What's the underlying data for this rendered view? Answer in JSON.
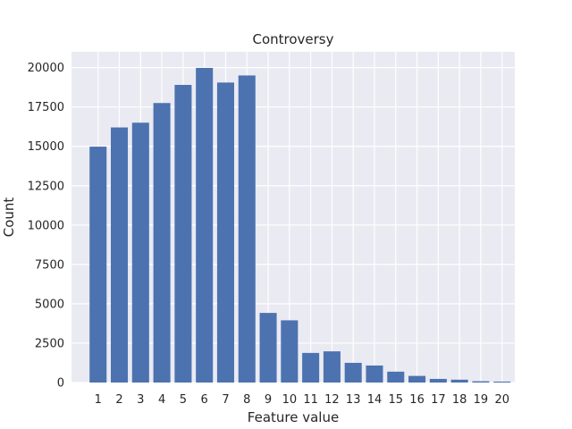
{
  "chart_data": {
    "type": "bar",
    "title": "Controversy",
    "xlabel": "Feature value",
    "ylabel": "Count",
    "categories": [
      "1",
      "2",
      "3",
      "4",
      "5",
      "6",
      "7",
      "8",
      "9",
      "10",
      "11",
      "12",
      "13",
      "14",
      "15",
      "16",
      "17",
      "18",
      "19",
      "20"
    ],
    "values": [
      14980,
      16200,
      16500,
      17750,
      18900,
      19980,
      19050,
      19500,
      4420,
      3950,
      1880,
      1980,
      1250,
      1080,
      690,
      420,
      230,
      180,
      80,
      60
    ],
    "ylim": [
      0,
      21000
    ],
    "yticks": [
      0,
      2500,
      5000,
      7500,
      10000,
      12500,
      15000,
      17500,
      20000
    ],
    "grid": true,
    "colors": {
      "bar": "#4c72b0",
      "background": "#eaeaf2",
      "grid": "#ffffff"
    }
  }
}
